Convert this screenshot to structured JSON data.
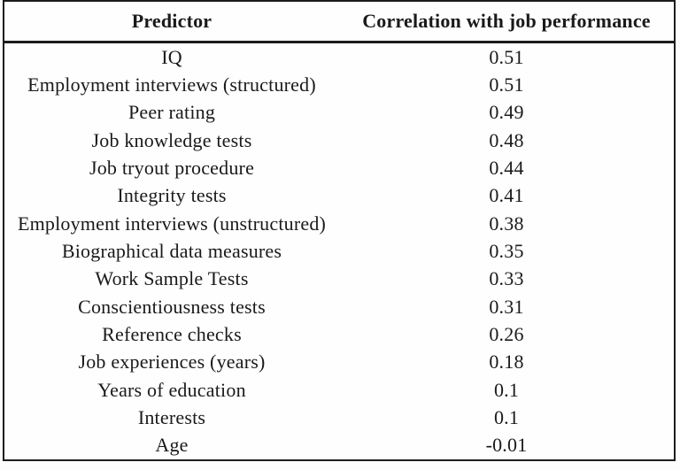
{
  "table": {
    "columns": [
      "Predictor",
      "Correlation with job performance"
    ],
    "rows": [
      {
        "predictor": "IQ",
        "correlation": "0.51"
      },
      {
        "predictor": "Employment interviews (structured)",
        "correlation": "0.51"
      },
      {
        "predictor": "Peer rating",
        "correlation": "0.49"
      },
      {
        "predictor": "Job knowledge tests",
        "correlation": "0.48"
      },
      {
        "predictor": "Job tryout procedure",
        "correlation": "0.44"
      },
      {
        "predictor": "Integrity tests",
        "correlation": "0.41"
      },
      {
        "predictor": "Employment interviews (unstructured)",
        "correlation": "0.38"
      },
      {
        "predictor": "Biographical data measures",
        "correlation": "0.35"
      },
      {
        "predictor": "Work Sample Tests",
        "correlation": "0.33"
      },
      {
        "predictor": "Conscientiousness tests",
        "correlation": "0.31"
      },
      {
        "predictor": "Reference checks",
        "correlation": "0.26"
      },
      {
        "predictor": "Job experiences (years)",
        "correlation": "0.18"
      },
      {
        "predictor": "Years of education",
        "correlation": "0.1"
      },
      {
        "predictor": "Interests",
        "correlation": "0.1"
      },
      {
        "predictor": "Age",
        "correlation": "-0.01"
      }
    ]
  },
  "chart_data": {
    "type": "table",
    "title": "",
    "categories": [
      "IQ",
      "Employment interviews (structured)",
      "Peer rating",
      "Job knowledge tests",
      "Job tryout procedure",
      "Integrity tests",
      "Employment interviews (unstructured)",
      "Biographical data measures",
      "Work Sample Tests",
      "Conscientiousness tests",
      "Reference checks",
      "Job experiences (years)",
      "Years of education",
      "Interests",
      "Age"
    ],
    "values": [
      0.51,
      0.51,
      0.49,
      0.48,
      0.44,
      0.41,
      0.38,
      0.35,
      0.33,
      0.31,
      0.26,
      0.18,
      0.1,
      0.1,
      -0.01
    ],
    "xlabel": "Predictor",
    "ylabel": "Correlation with job performance"
  },
  "colors": {
    "border": "#1c1c1c",
    "text": "#1a1a1a",
    "background": "#fefefe"
  }
}
